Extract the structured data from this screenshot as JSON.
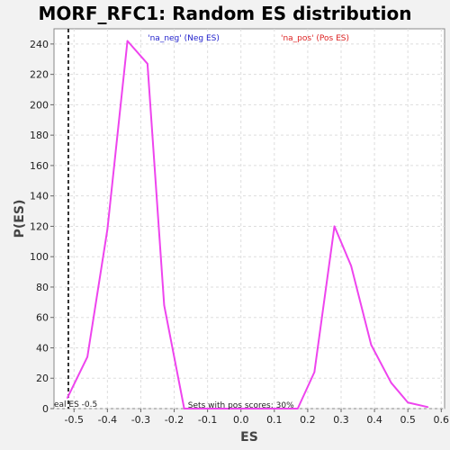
{
  "chart_data": {
    "type": "line",
    "title": "MORF_RFC1: Random ES distribution",
    "xlabel": "ES",
    "ylabel": "P(ES)",
    "xlim": [
      -0.56,
      0.61
    ],
    "ylim": [
      0,
      250
    ],
    "x_ticks": [
      -0.5,
      -0.4,
      -0.3,
      -0.2,
      -0.1,
      0.0,
      0.1,
      0.2,
      0.3,
      0.4,
      0.5,
      0.6
    ],
    "x_tick_labels": [
      "-0.5",
      "-0.4",
      "-0.3",
      "-0.2",
      "-0.1",
      "0.0",
      "0.1",
      "0.2",
      "0.3",
      "0.4",
      "0.5",
      "0.6"
    ],
    "y_ticks": [
      0,
      20,
      40,
      60,
      80,
      100,
      120,
      140,
      160,
      180,
      200,
      220,
      240
    ],
    "y_tick_labels": [
      "0",
      "20",
      "40",
      "60",
      "80",
      "100",
      "120",
      "140",
      "160",
      "180",
      "200",
      "220",
      "240"
    ],
    "grid": true,
    "series": [
      {
        "color": "#ee44ee",
        "x": [
          -0.52,
          -0.46,
          -0.4,
          -0.34,
          -0.28,
          -0.23,
          -0.17,
          0.17,
          0.22,
          0.28,
          0.33,
          0.39,
          0.45,
          0.5,
          0.56
        ],
        "y": [
          7,
          34,
          118,
          242,
          227,
          68,
          0,
          0,
          24,
          120,
          94,
          42,
          17,
          4,
          1
        ]
      }
    ],
    "vline": {
      "x": -0.517,
      "color": "#000000",
      "style": "dashed"
    },
    "legend_entries": [
      {
        "text": "'na_neg' (Neg ES)",
        "color": "#2222cc"
      },
      {
        "text": "'na_pos' (Pos ES)",
        "color": "#dd2222"
      }
    ],
    "annotations": [
      {
        "text": "eal ES -0.5"
      },
      {
        "text": "Sets with pos scores: 30%"
      }
    ]
  }
}
